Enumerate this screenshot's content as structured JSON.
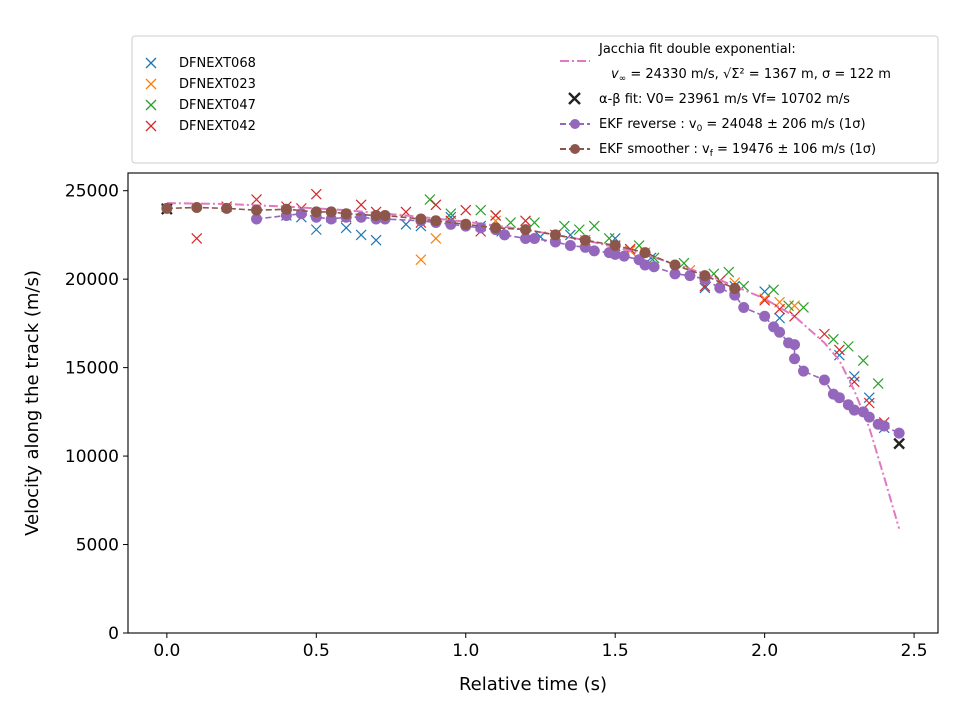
{
  "chart_data": {
    "type": "scatter",
    "title": "",
    "xlabel": "Relative time (s)",
    "ylabel": "Velocity along the track (m/s)",
    "xlim": [
      -0.13,
      2.58
    ],
    "ylim": [
      0,
      26000
    ],
    "x_ticks": [
      0.0,
      0.5,
      1.0,
      1.5,
      2.0,
      2.5
    ],
    "x_tick_labels": [
      "0.0",
      "0.5",
      "1.0",
      "1.5",
      "2.0",
      "2.5"
    ],
    "y_ticks": [
      0,
      5000,
      10000,
      15000,
      20000,
      25000
    ],
    "y_tick_labels": [
      "0",
      "5000",
      "10000",
      "15000",
      "20000",
      "25000"
    ],
    "grid": false,
    "legend_position": "top, above plot",
    "series": [
      {
        "name": "DFNEXT068",
        "kind": "cross",
        "color": "#1f77b4",
        "points": [
          [
            0.4,
            23600
          ],
          [
            0.45,
            23500
          ],
          [
            0.5,
            22800
          ],
          [
            0.55,
            23500
          ],
          [
            0.6,
            22900
          ],
          [
            0.65,
            22500
          ],
          [
            0.7,
            22200
          ],
          [
            0.8,
            23100
          ],
          [
            0.85,
            23000
          ],
          [
            0.95,
            23500
          ],
          [
            1.05,
            23000
          ],
          [
            1.12,
            22700
          ],
          [
            1.25,
            22400
          ],
          [
            1.35,
            22500
          ],
          [
            1.5,
            22300
          ],
          [
            1.62,
            21200
          ],
          [
            1.8,
            19500
          ],
          [
            1.9,
            19600
          ],
          [
            2.0,
            19300
          ],
          [
            2.05,
            17800
          ],
          [
            2.25,
            15700
          ],
          [
            2.3,
            14500
          ],
          [
            2.35,
            13300
          ],
          [
            2.4,
            11600
          ]
        ]
      },
      {
        "name": "DFNEXT023",
        "kind": "cross",
        "color": "#ff7f0e",
        "points": [
          [
            0.85,
            21100
          ],
          [
            0.9,
            22300
          ],
          [
            1.1,
            23300
          ],
          [
            1.3,
            22500
          ],
          [
            1.4,
            22200
          ],
          [
            1.55,
            21600
          ],
          [
            1.6,
            21500
          ],
          [
            1.75,
            20500
          ],
          [
            1.9,
            19800
          ],
          [
            2.0,
            18900
          ],
          [
            2.05,
            18700
          ],
          [
            2.1,
            18500
          ]
        ]
      },
      {
        "name": "DFNEXT047",
        "kind": "cross",
        "color": "#2ca02c",
        "points": [
          [
            0.88,
            24500
          ],
          [
            0.95,
            23700
          ],
          [
            1.05,
            23900
          ],
          [
            1.1,
            23600
          ],
          [
            1.15,
            23200
          ],
          [
            1.23,
            23200
          ],
          [
            1.33,
            23000
          ],
          [
            1.38,
            22800
          ],
          [
            1.43,
            23000
          ],
          [
            1.48,
            22300
          ],
          [
            1.58,
            21900
          ],
          [
            1.63,
            21200
          ],
          [
            1.73,
            20900
          ],
          [
            1.83,
            20300
          ],
          [
            1.88,
            20400
          ],
          [
            1.93,
            19600
          ],
          [
            2.03,
            19400
          ],
          [
            2.08,
            18500
          ],
          [
            2.13,
            18400
          ],
          [
            2.23,
            16600
          ],
          [
            2.28,
            16200
          ],
          [
            2.33,
            15400
          ],
          [
            2.38,
            14100
          ]
        ]
      },
      {
        "name": "DFNEXT042",
        "kind": "cross",
        "color": "#d62728",
        "points": [
          [
            0.0,
            24000
          ],
          [
            0.1,
            22300
          ],
          [
            0.2,
            24100
          ],
          [
            0.3,
            24500
          ],
          [
            0.4,
            24100
          ],
          [
            0.45,
            24000
          ],
          [
            0.5,
            24800
          ],
          [
            0.6,
            23500
          ],
          [
            0.65,
            24200
          ],
          [
            0.7,
            23800
          ],
          [
            0.8,
            23800
          ],
          [
            0.85,
            23200
          ],
          [
            0.9,
            24200
          ],
          [
            0.95,
            23300
          ],
          [
            1.0,
            23900
          ],
          [
            1.05,
            22700
          ],
          [
            1.1,
            23600
          ],
          [
            1.2,
            23300
          ],
          [
            1.3,
            22500
          ],
          [
            1.4,
            22100
          ],
          [
            1.5,
            21900
          ],
          [
            1.55,
            21700
          ],
          [
            1.7,
            20600
          ],
          [
            1.8,
            19600
          ],
          [
            1.85,
            19900
          ],
          [
            1.9,
            19300
          ],
          [
            2.0,
            18800
          ],
          [
            2.05,
            18300
          ],
          [
            2.1,
            17900
          ],
          [
            2.2,
            16900
          ],
          [
            2.25,
            16000
          ],
          [
            2.3,
            14200
          ],
          [
            2.35,
            13000
          ],
          [
            2.4,
            11900
          ]
        ]
      },
      {
        "name": "Jacchia fit double exponential: v∞ = 24330 m/s, √Σ² = 1367 m, σ = 122 m",
        "kind": "dashdot",
        "color": "#e377c2",
        "points": [
          [
            0.0,
            24300
          ],
          [
            0.2,
            24250
          ],
          [
            0.4,
            24100
          ],
          [
            0.6,
            23900
          ],
          [
            0.8,
            23600
          ],
          [
            1.0,
            23250
          ],
          [
            1.2,
            22800
          ],
          [
            1.4,
            22200
          ],
          [
            1.6,
            21400
          ],
          [
            1.8,
            20300
          ],
          [
            1.9,
            19600
          ],
          [
            2.0,
            18900
          ],
          [
            2.1,
            17900
          ],
          [
            2.2,
            16400
          ],
          [
            2.25,
            15400
          ],
          [
            2.3,
            13700
          ],
          [
            2.35,
            11600
          ],
          [
            2.4,
            8800
          ],
          [
            2.45,
            5900
          ]
        ]
      },
      {
        "name": "α-β fit: V0= 23961 m/s   Vf= 10702 m/s",
        "kind": "xmarker",
        "color": "#222222",
        "points": [
          [
            0.0,
            23961
          ],
          [
            2.45,
            10702
          ]
        ]
      },
      {
        "name": "EKF reverse : v0 = 24048 ± 206 m/s (1σ)",
        "kind": "dashed-dots",
        "color": "#9467bd",
        "points": [
          [
            0.3,
            23400
          ],
          [
            0.4,
            23600
          ],
          [
            0.45,
            23700
          ],
          [
            0.5,
            23500
          ],
          [
            0.55,
            23400
          ],
          [
            0.6,
            23500
          ],
          [
            0.65,
            23500
          ],
          [
            0.7,
            23400
          ],
          [
            0.73,
            23400
          ],
          [
            0.85,
            23300
          ],
          [
            0.9,
            23200
          ],
          [
            0.95,
            23100
          ],
          [
            1.0,
            23000
          ],
          [
            1.05,
            22900
          ],
          [
            1.1,
            22800
          ],
          [
            1.13,
            22500
          ],
          [
            1.2,
            22300
          ],
          [
            1.23,
            22300
          ],
          [
            1.3,
            22100
          ],
          [
            1.35,
            21900
          ],
          [
            1.4,
            21800
          ],
          [
            1.43,
            21600
          ],
          [
            1.48,
            21500
          ],
          [
            1.5,
            21400
          ],
          [
            1.53,
            21300
          ],
          [
            1.58,
            21100
          ],
          [
            1.6,
            20800
          ],
          [
            1.63,
            20700
          ],
          [
            1.7,
            20300
          ],
          [
            1.75,
            20200
          ],
          [
            1.8,
            20000
          ],
          [
            1.85,
            19500
          ],
          [
            1.9,
            19100
          ],
          [
            1.93,
            18400
          ],
          [
            2.0,
            17900
          ],
          [
            2.03,
            17300
          ],
          [
            2.05,
            17000
          ],
          [
            2.08,
            16400
          ],
          [
            2.1,
            16300
          ],
          [
            2.1,
            15500
          ],
          [
            2.13,
            14800
          ],
          [
            2.2,
            14300
          ],
          [
            2.23,
            13500
          ],
          [
            2.25,
            13300
          ],
          [
            2.28,
            12900
          ],
          [
            2.3,
            12600
          ],
          [
            2.33,
            12500
          ],
          [
            2.35,
            12200
          ],
          [
            2.38,
            11800
          ],
          [
            2.4,
            11700
          ],
          [
            2.45,
            11300
          ]
        ]
      },
      {
        "name": "EKF smoother : vf = 19476 ± 106 m/s (1σ)",
        "kind": "dashed-dots",
        "color": "#8c564b",
        "points": [
          [
            0.0,
            24000
          ],
          [
            0.1,
            24050
          ],
          [
            0.2,
            24000
          ],
          [
            0.3,
            23900
          ],
          [
            0.4,
            23950
          ],
          [
            0.5,
            23800
          ],
          [
            0.55,
            23800
          ],
          [
            0.6,
            23700
          ],
          [
            0.7,
            23600
          ],
          [
            0.73,
            23600
          ],
          [
            0.85,
            23400
          ],
          [
            0.9,
            23300
          ],
          [
            1.0,
            23100
          ],
          [
            1.1,
            22900
          ],
          [
            1.2,
            22800
          ],
          [
            1.3,
            22500
          ],
          [
            1.4,
            22200
          ],
          [
            1.5,
            21900
          ],
          [
            1.6,
            21500
          ],
          [
            1.7,
            20800
          ],
          [
            1.8,
            20200
          ],
          [
            1.9,
            19476
          ]
        ]
      }
    ]
  },
  "legend": {
    "left_entries": [
      "DFNEXT068",
      "DFNEXT023",
      "DFNEXT047",
      "DFNEXT042"
    ],
    "jacchia_line1": "Jacchia fit double exponential:",
    "jacchia_line2_a": "v",
    "jacchia_line2_sub": "∞",
    "jacchia_line2_b": " = 24330 m/s, ",
    "jacchia_line2_sigma": "√Σ²",
    "jacchia_line2_c": " = 1367 m, σ = 122 m",
    "ab_text": "α-β fit: V0= 23961 m/s   Vf= 10702 m/s",
    "ekf_rev_a": "EKF reverse : v",
    "ekf_rev_sub": "0",
    "ekf_rev_b": " =  24048 ± 206 m/s (1σ)",
    "ekf_smooth_a": "EKF smoother : v",
    "ekf_smooth_sub": "f",
    "ekf_smooth_b": " =  19476 ± 106 m/s (1σ)"
  }
}
